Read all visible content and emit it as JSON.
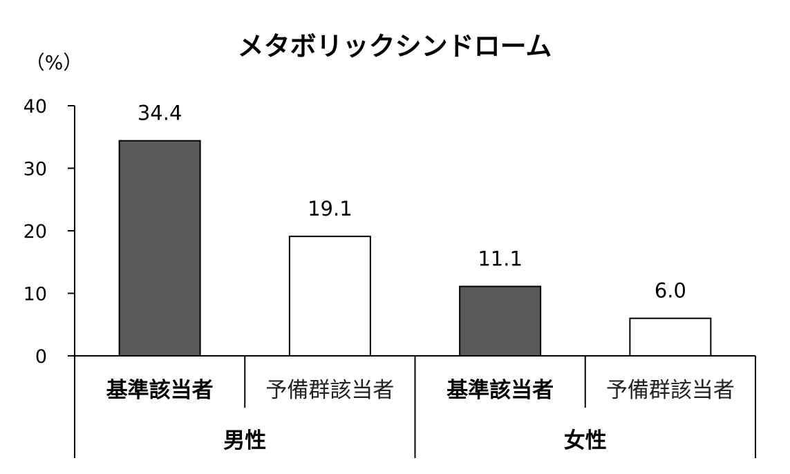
{
  "chart_data": {
    "type": "bar",
    "title": "メタボリックシンドローム",
    "ylabel": "（%）",
    "xlabel": "",
    "ylim": [
      0,
      40
    ],
    "yticks": [
      0,
      10,
      20,
      30,
      40
    ],
    "grid": false,
    "legend": "none",
    "groups": [
      {
        "name": "男性",
        "categories": [
          {
            "label": "基準該当者",
            "value": 34.4,
            "value_label": "34.4",
            "color": "#595959",
            "bold": true
          },
          {
            "label": "予備群該当者",
            "value": 19.1,
            "value_label": "19.1",
            "color": "#ffffff",
            "bold": false
          }
        ]
      },
      {
        "name": "女性",
        "categories": [
          {
            "label": "基準該当者",
            "value": 11.1,
            "value_label": "11.1",
            "color": "#595959",
            "bold": true
          },
          {
            "label": "予備群該当者",
            "value": 6.0,
            "value_label": "6.0",
            "color": "#ffffff",
            "bold": false
          }
        ]
      }
    ]
  }
}
